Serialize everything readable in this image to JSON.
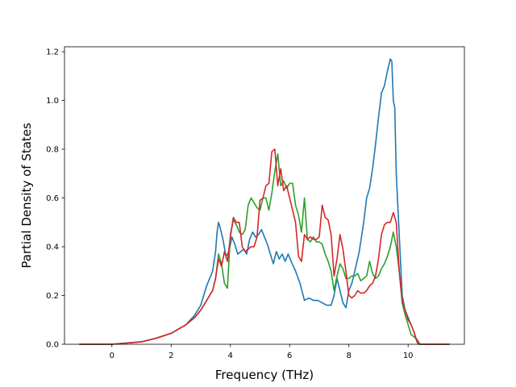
{
  "chart_data": {
    "type": "line",
    "title": "",
    "xlabel": "Frequency (THz)",
    "ylabel": "Partial Density of States",
    "xlim": [
      -1.6,
      11.9
    ],
    "ylim": [
      0.0,
      1.22
    ],
    "xticks": [
      0,
      2,
      4,
      6,
      8,
      10
    ],
    "xtick_labels": [
      "0",
      "2",
      "4",
      "6",
      "8",
      "10"
    ],
    "yticks": [
      0.0,
      0.2,
      0.4,
      0.6,
      0.8,
      1.0,
      1.2
    ],
    "ytick_labels": [
      "0.0",
      "0.2",
      "0.4",
      "0.6",
      "0.8",
      "1.0",
      "1.2"
    ],
    "grid": false,
    "legend": "none",
    "series": [
      {
        "color": "#1f77b4",
        "x": [
          -1.1,
          0,
          1,
          1.5,
          2,
          2.5,
          2.8,
          3.0,
          3.2,
          3.4,
          3.5,
          3.55,
          3.6,
          3.65,
          3.75,
          3.85,
          3.95,
          4.05,
          4.15,
          4.25,
          4.35,
          4.45,
          4.55,
          4.65,
          4.75,
          4.85,
          4.95,
          5.05,
          5.15,
          5.25,
          5.35,
          5.45,
          5.55,
          5.65,
          5.75,
          5.85,
          5.95,
          6.05,
          6.2,
          6.35,
          6.5,
          6.65,
          6.8,
          6.95,
          7.1,
          7.25,
          7.4,
          7.5,
          7.6,
          7.7,
          7.8,
          7.9,
          8.0,
          8.1,
          8.2,
          8.35,
          8.5,
          8.6,
          8.7,
          8.8,
          8.9,
          9.0,
          9.1,
          9.2,
          9.3,
          9.4,
          9.45,
          9.5,
          9.55,
          9.6,
          9.7,
          9.8,
          9.9,
          10.0,
          10.1,
          10.2,
          10.3,
          10.35,
          10.4,
          10.6,
          11.4
        ],
        "values": [
          0,
          0,
          0.01,
          0.025,
          0.045,
          0.08,
          0.12,
          0.16,
          0.24,
          0.3,
          0.38,
          0.46,
          0.5,
          0.48,
          0.43,
          0.36,
          0.38,
          0.44,
          0.41,
          0.37,
          0.38,
          0.39,
          0.37,
          0.43,
          0.46,
          0.44,
          0.45,
          0.47,
          0.44,
          0.41,
          0.37,
          0.33,
          0.38,
          0.35,
          0.37,
          0.34,
          0.37,
          0.34,
          0.3,
          0.25,
          0.18,
          0.19,
          0.18,
          0.18,
          0.17,
          0.16,
          0.16,
          0.2,
          0.27,
          0.22,
          0.17,
          0.15,
          0.22,
          0.25,
          0.3,
          0.38,
          0.5,
          0.6,
          0.64,
          0.72,
          0.82,
          0.93,
          1.03,
          1.06,
          1.12,
          1.17,
          1.16,
          1.0,
          0.97,
          0.7,
          0.45,
          0.2,
          0.14,
          0.11,
          0.08,
          0.05,
          0.01,
          0,
          0,
          0,
          0
        ]
      },
      {
        "color": "#2ca02c",
        "x": [
          -1.1,
          0,
          1,
          1.5,
          2,
          2.5,
          2.8,
          3.0,
          3.2,
          3.4,
          3.5,
          3.6,
          3.7,
          3.8,
          3.9,
          4.0,
          4.1,
          4.2,
          4.3,
          4.4,
          4.5,
          4.6,
          4.7,
          4.8,
          4.9,
          5.0,
          5.1,
          5.2,
          5.3,
          5.4,
          5.5,
          5.6,
          5.7,
          5.8,
          5.9,
          6.0,
          6.1,
          6.2,
          6.3,
          6.4,
          6.5,
          6.6,
          6.7,
          6.8,
          6.9,
          7.0,
          7.1,
          7.2,
          7.3,
          7.4,
          7.5,
          7.6,
          7.7,
          7.8,
          7.9,
          8.0,
          8.1,
          8.2,
          8.3,
          8.4,
          8.5,
          8.6,
          8.7,
          8.8,
          8.9,
          9.0,
          9.1,
          9.2,
          9.3,
          9.4,
          9.5,
          9.6,
          9.7,
          9.8,
          9.9,
          10.0,
          10.1,
          10.2,
          10.3,
          10.4,
          10.6,
          11.4
        ],
        "values": [
          0,
          0,
          0.01,
          0.025,
          0.045,
          0.08,
          0.11,
          0.14,
          0.18,
          0.22,
          0.27,
          0.37,
          0.33,
          0.25,
          0.23,
          0.45,
          0.51,
          0.49,
          0.46,
          0.45,
          0.47,
          0.57,
          0.6,
          0.58,
          0.56,
          0.55,
          0.6,
          0.6,
          0.55,
          0.62,
          0.71,
          0.78,
          0.65,
          0.67,
          0.64,
          0.66,
          0.66,
          0.57,
          0.53,
          0.46,
          0.6,
          0.43,
          0.42,
          0.44,
          0.42,
          0.42,
          0.41,
          0.37,
          0.34,
          0.3,
          0.22,
          0.28,
          0.33,
          0.31,
          0.27,
          0.27,
          0.28,
          0.28,
          0.29,
          0.26,
          0.27,
          0.28,
          0.34,
          0.29,
          0.27,
          0.28,
          0.31,
          0.33,
          0.36,
          0.4,
          0.46,
          0.4,
          0.3,
          0.17,
          0.12,
          0.08,
          0.04,
          0.03,
          0.02,
          0,
          0,
          0
        ]
      },
      {
        "color": "#d62728",
        "x": [
          -1.1,
          0,
          1,
          1.5,
          2,
          2.5,
          2.8,
          3.0,
          3.2,
          3.4,
          3.5,
          3.6,
          3.7,
          3.8,
          3.9,
          4.0,
          4.1,
          4.2,
          4.3,
          4.4,
          4.5,
          4.6,
          4.7,
          4.8,
          4.9,
          5.0,
          5.1,
          5.2,
          5.3,
          5.4,
          5.5,
          5.6,
          5.7,
          5.8,
          5.9,
          6.0,
          6.1,
          6.2,
          6.3,
          6.4,
          6.5,
          6.6,
          6.7,
          6.8,
          6.9,
          7.0,
          7.1,
          7.2,
          7.3,
          7.4,
          7.5,
          7.6,
          7.7,
          7.8,
          7.9,
          8.0,
          8.1,
          8.2,
          8.3,
          8.4,
          8.5,
          8.6,
          8.7,
          8.8,
          8.9,
          9.0,
          9.1,
          9.2,
          9.3,
          9.4,
          9.5,
          9.6,
          9.7,
          9.8,
          9.9,
          10.0,
          10.1,
          10.2,
          10.3,
          10.4,
          10.6,
          11.4
        ],
        "values": [
          0,
          0,
          0.01,
          0.025,
          0.045,
          0.08,
          0.11,
          0.14,
          0.18,
          0.22,
          0.27,
          0.35,
          0.32,
          0.38,
          0.34,
          0.44,
          0.52,
          0.5,
          0.5,
          0.4,
          0.38,
          0.39,
          0.4,
          0.4,
          0.44,
          0.59,
          0.6,
          0.65,
          0.66,
          0.79,
          0.8,
          0.65,
          0.72,
          0.63,
          0.65,
          0.6,
          0.55,
          0.5,
          0.36,
          0.34,
          0.45,
          0.43,
          0.44,
          0.43,
          0.43,
          0.44,
          0.57,
          0.52,
          0.51,
          0.45,
          0.28,
          0.35,
          0.45,
          0.39,
          0.3,
          0.2,
          0.19,
          0.2,
          0.22,
          0.21,
          0.21,
          0.22,
          0.24,
          0.25,
          0.28,
          0.35,
          0.45,
          0.49,
          0.5,
          0.5,
          0.54,
          0.5,
          0.3,
          0.18,
          0.14,
          0.1,
          0.08,
          0.05,
          0.01,
          0,
          0,
          0
        ]
      }
    ]
  }
}
